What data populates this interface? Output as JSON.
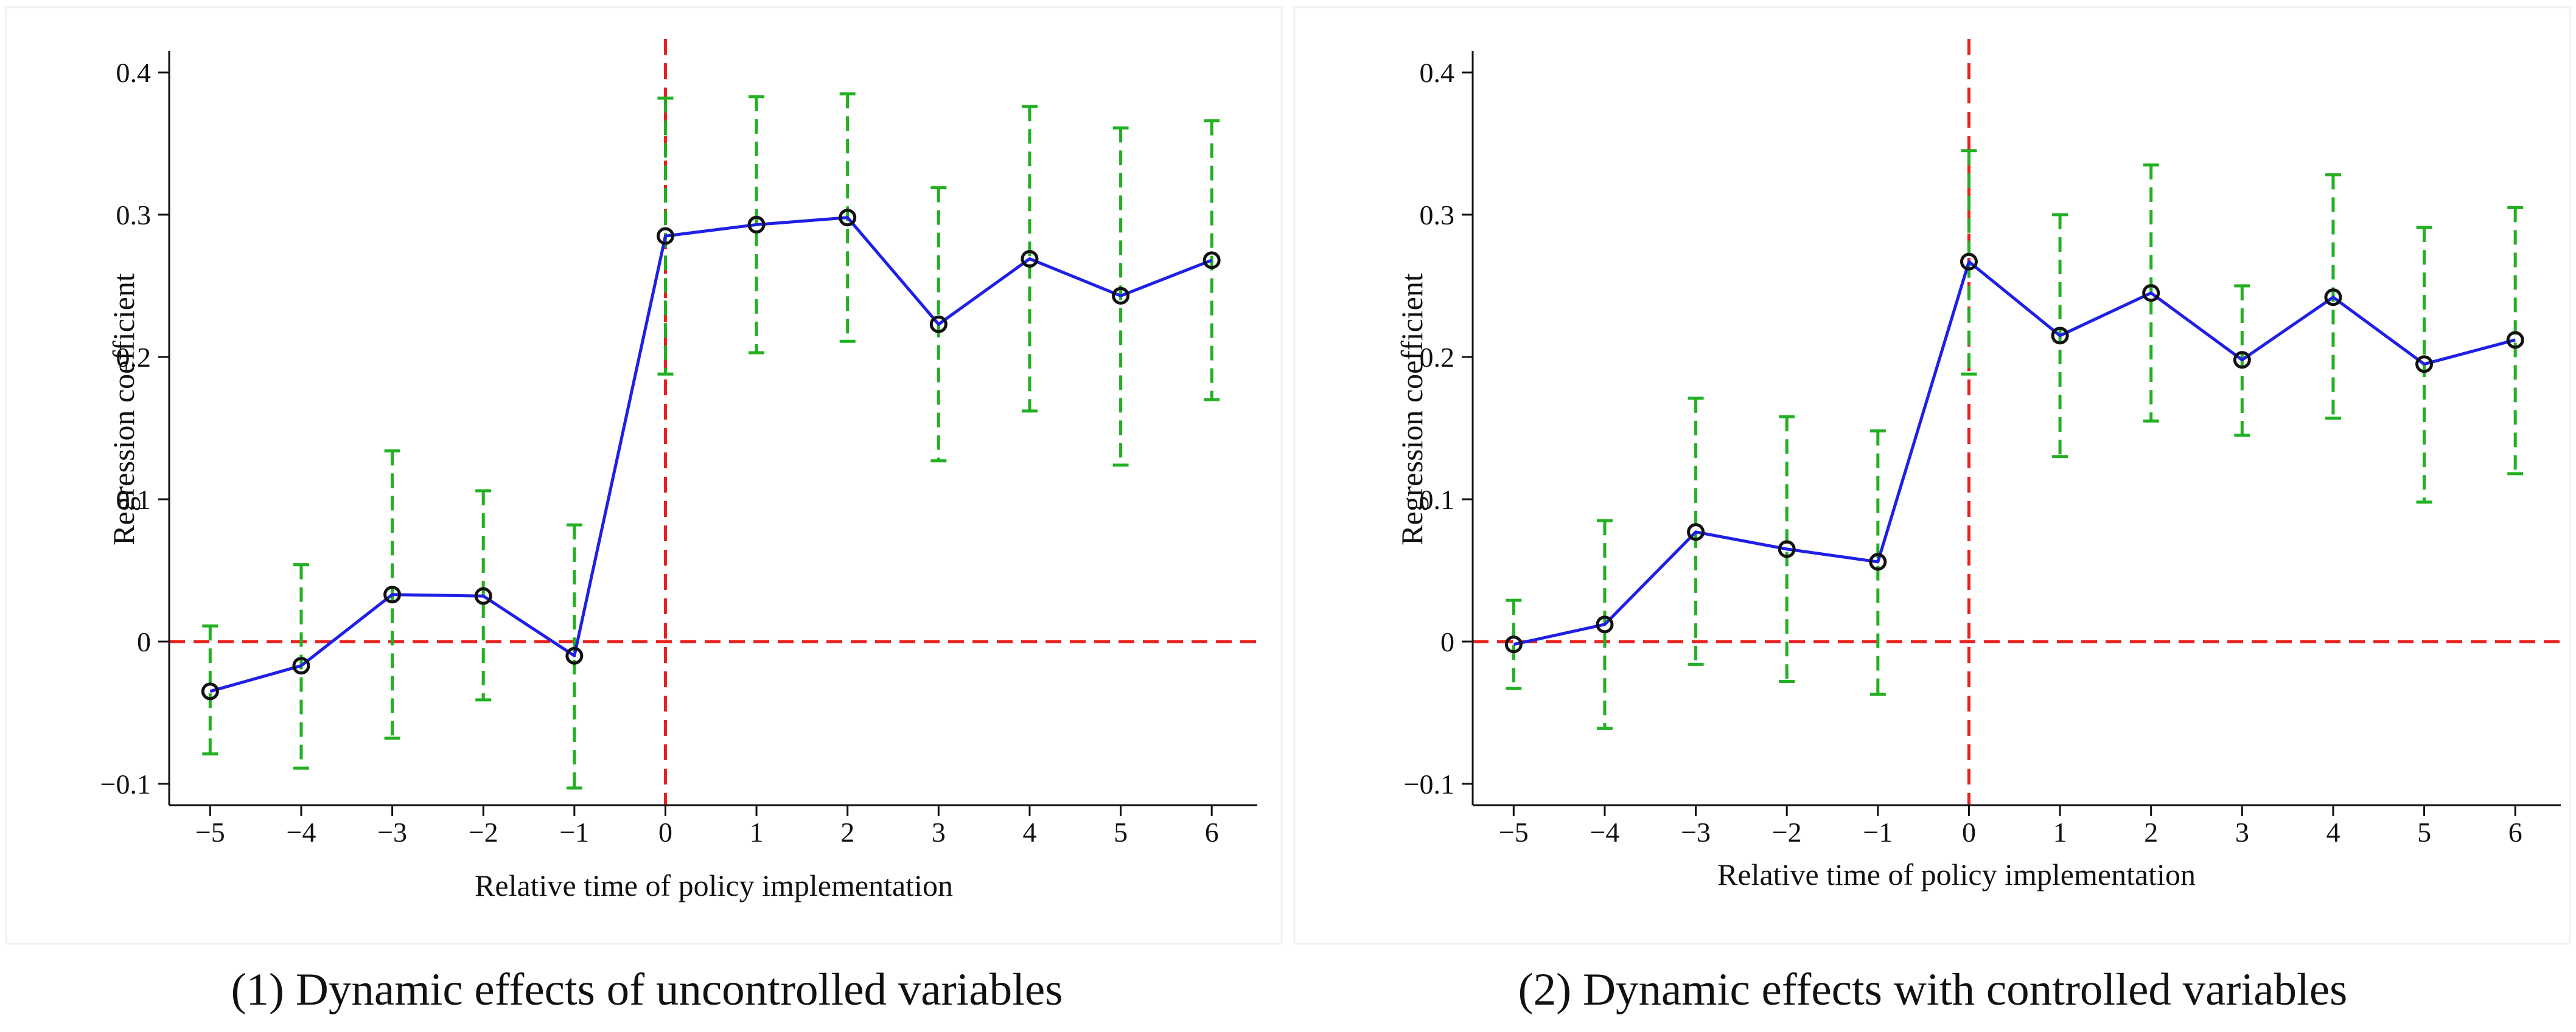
{
  "chart_data": [
    {
      "type": "line",
      "caption": "(1) Dynamic effects of uncontrolled variables",
      "xlabel": "Relative time of policy implementation",
      "ylabel": "Regression coefficient",
      "x": [
        -5,
        -4,
        -3,
        -2,
        -1,
        0,
        1,
        2,
        3,
        4,
        5,
        6
      ],
      "x_tick_labels": [
        "−5",
        "−4",
        "−3",
        "−2",
        "−1",
        "0",
        "1",
        "2",
        "3",
        "4",
        "5",
        "6"
      ],
      "y_ticks": [
        -0.1,
        0,
        0.1,
        0.2,
        0.3,
        0.4
      ],
      "y_tick_labels": [
        "−0.1",
        "0",
        "0.1",
        "0.2",
        "0.3",
        "0.4"
      ],
      "xlim": [
        -5.45,
        6.5
      ],
      "ylim": [
        -0.115,
        0.415
      ],
      "series": [
        {
          "name": "Regression coefficient",
          "values": [
            -0.035,
            -0.017,
            0.033,
            0.032,
            -0.01,
            0.285,
            0.293,
            0.298,
            0.223,
            0.269,
            0.243,
            0.268
          ],
          "ci_lower": [
            -0.079,
            -0.089,
            -0.068,
            -0.041,
            -0.103,
            0.188,
            0.203,
            0.211,
            0.127,
            0.162,
            0.124,
            0.17
          ],
          "ci_upper": [
            0.011,
            0.054,
            0.134,
            0.106,
            0.082,
            0.382,
            0.383,
            0.385,
            0.319,
            0.376,
            0.361,
            0.366
          ]
        }
      ],
      "reference_lines": {
        "x": 0,
        "y": 0
      },
      "colors": {
        "line": "#1f1fe6",
        "ci": "#22b022",
        "reference": "#e8211c",
        "marker": "#111111"
      }
    },
    {
      "type": "line",
      "caption": "(2) Dynamic effects with controlled variables",
      "xlabel": "Relative time of policy implementation",
      "ylabel": "Regression coefficient",
      "x": [
        -5,
        -4,
        -3,
        -2,
        -1,
        0,
        1,
        2,
        3,
        4,
        5,
        6
      ],
      "x_tick_labels": [
        "−5",
        "−4",
        "−3",
        "−2",
        "−1",
        "0",
        "1",
        "2",
        "3",
        "4",
        "5",
        "6"
      ],
      "y_ticks": [
        -0.1,
        0,
        0.1,
        0.2,
        0.3,
        0.4
      ],
      "y_tick_labels": [
        "−0.1",
        "0",
        "0.1",
        "0.2",
        "0.3",
        "0.4"
      ],
      "xlim": [
        -5.45,
        6.5
      ],
      "ylim": [
        -0.115,
        0.415
      ],
      "series": [
        {
          "name": "Regression coefficient",
          "values": [
            -0.002,
            0.012,
            0.077,
            0.065,
            0.056,
            0.267,
            0.215,
            0.245,
            0.198,
            0.242,
            0.195,
            0.212
          ],
          "ci_lower": [
            -0.033,
            -0.061,
            -0.016,
            -0.028,
            -0.037,
            0.188,
            0.13,
            0.155,
            0.145,
            0.157,
            0.098,
            0.118
          ],
          "ci_upper": [
            0.029,
            0.085,
            0.171,
            0.158,
            0.148,
            0.345,
            0.3,
            0.335,
            0.25,
            0.328,
            0.291,
            0.305
          ]
        }
      ],
      "reference_lines": {
        "x": 0,
        "y": 0
      },
      "colors": {
        "line": "#1f1fe6",
        "ci": "#22b022",
        "reference": "#e8211c",
        "marker": "#111111"
      }
    }
  ]
}
